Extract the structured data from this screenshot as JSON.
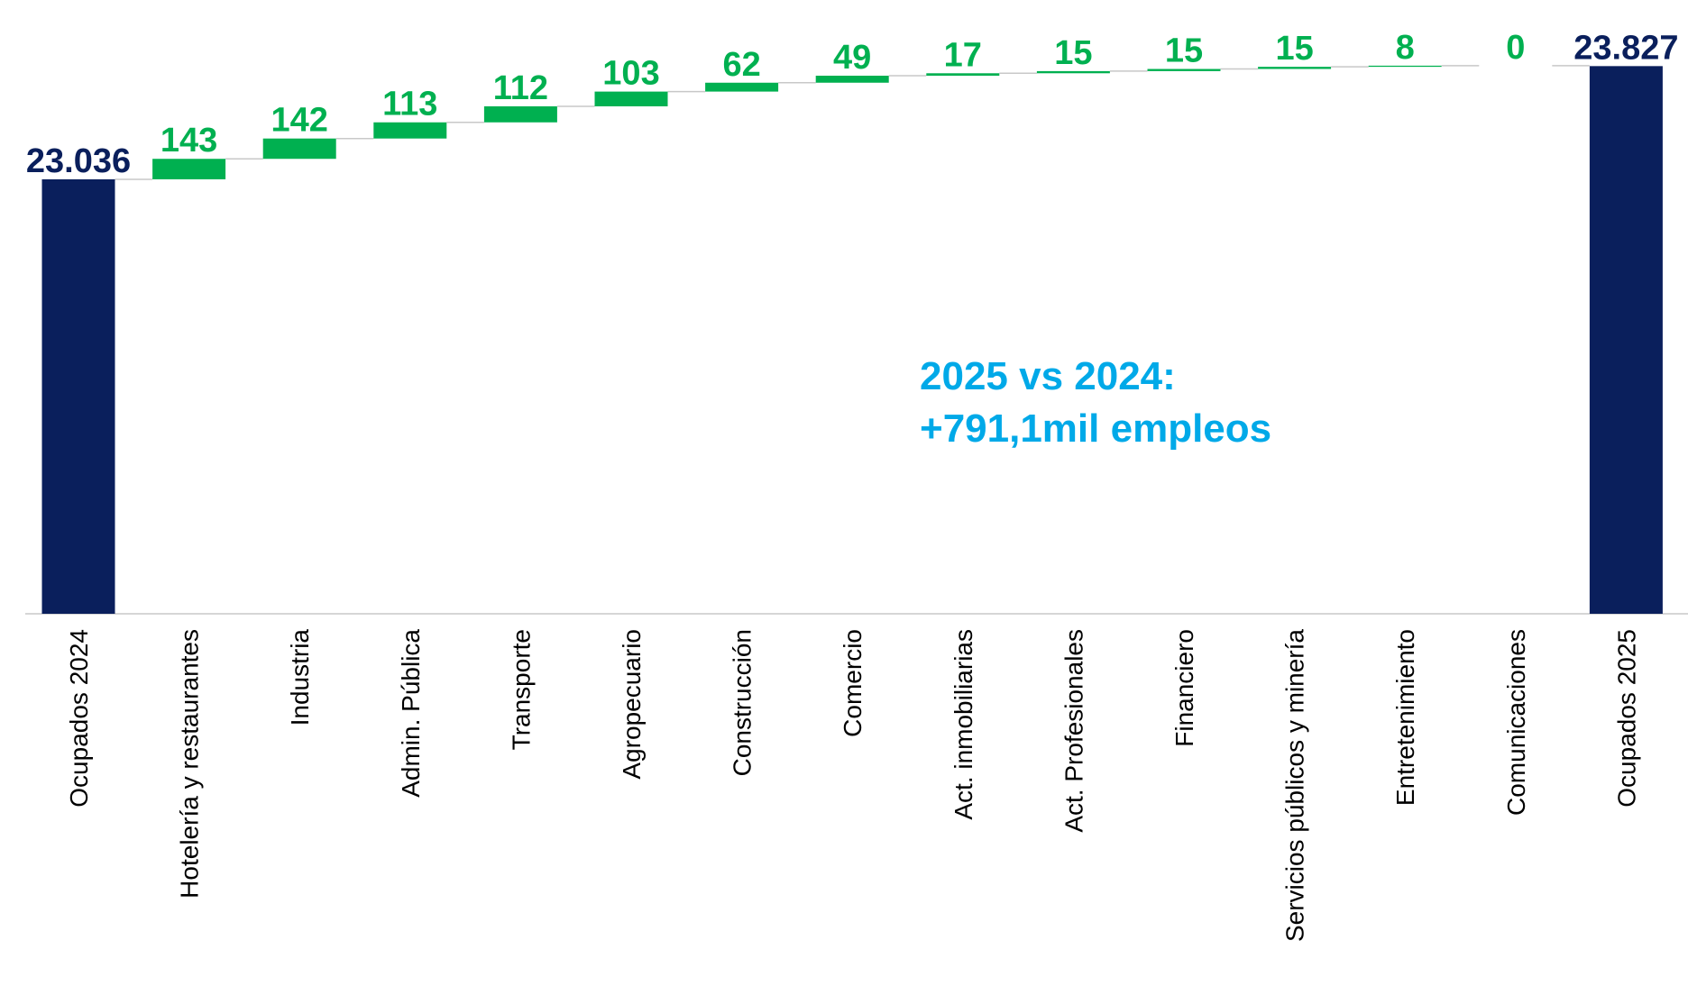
{
  "chart_data": {
    "type": "waterfall",
    "categories": [
      "Ocupados 2024",
      "Hotelería y restaurantes",
      "Industria",
      "Admin. Pública",
      "Transporte",
      "Agropecuario",
      "Construcción",
      "Comercio",
      "Act. inmobiliarias",
      "Act. Profesionales",
      "Financiero",
      "Servicios públicos y minería",
      "Entretenimiento",
      "Comunicaciones",
      "Ocupados 2025"
    ],
    "values": [
      23036,
      143,
      142,
      113,
      112,
      103,
      62,
      49,
      17,
      15,
      15,
      15,
      8,
      0,
      23827
    ],
    "value_labels": [
      "23.036",
      "143",
      "142",
      "113",
      "112",
      "103",
      "62",
      "49",
      "17",
      "15",
      "15",
      "15",
      "8",
      "0",
      "23.827"
    ],
    "measure": [
      "absolute",
      "relative",
      "relative",
      "relative",
      "relative",
      "relative",
      "relative",
      "relative",
      "relative",
      "relative",
      "relative",
      "relative",
      "relative",
      "relative",
      "absolute"
    ],
    "colors": [
      "#0a1f5c",
      "#00b050",
      "#00b050",
      "#00b050",
      "#00b050",
      "#00b050",
      "#00b050",
      "#00b050",
      "#00b050",
      "#00b050",
      "#00b050",
      "#00b050",
      "#00b050",
      "#00b050",
      "#0a1f5c"
    ],
    "ylim": [
      20000,
      24100
    ],
    "annotation": [
      "2025 vs 2024:",
      "+791,1mil empleos"
    ]
  }
}
